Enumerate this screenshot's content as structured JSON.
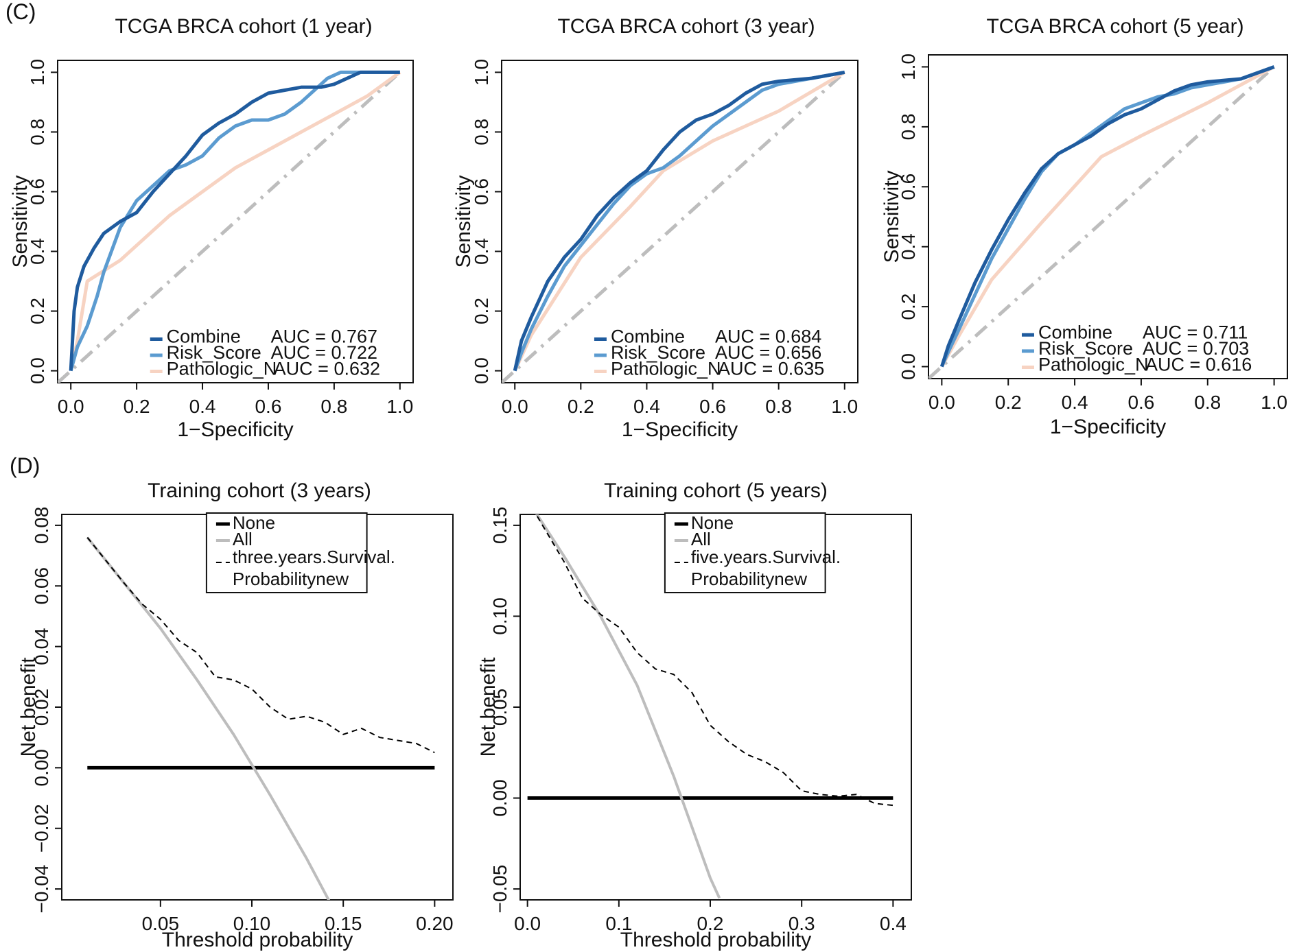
{
  "panel_labels": {
    "c": "(C)",
    "d": "(D)"
  },
  "colors": {
    "combine": "#1f5b9e",
    "risk": "#5b9bd0",
    "patho": "#f7d3c2",
    "diag": "#bdbdbd",
    "none": "#000000",
    "all": "#bdbdbd",
    "model": "#000000"
  },
  "chart_data": [
    {
      "id": "roc1",
      "type": "line",
      "title": "TCGA BRCA cohort (1 year)",
      "xlabel": "1−Specificity",
      "ylabel": "Sensitivity",
      "xlim": [
        0,
        1
      ],
      "ylim": [
        0,
        1
      ],
      "xticks": [
        "0.0",
        "0.2",
        "0.4",
        "0.6",
        "0.8",
        "1.0"
      ],
      "yticks": [
        "0.0",
        "0.2",
        "0.4",
        "0.6",
        "0.8",
        "1.0"
      ],
      "series": [
        {
          "name": "Combine",
          "auc": "AUC = 0.767",
          "color": "combine",
          "x": [
            0,
            0.01,
            0.02,
            0.04,
            0.07,
            0.1,
            0.15,
            0.2,
            0.25,
            0.3,
            0.35,
            0.4,
            0.45,
            0.5,
            0.55,
            0.6,
            0.65,
            0.7,
            0.76,
            0.8,
            0.88,
            1.0
          ],
          "y": [
            0,
            0.2,
            0.28,
            0.35,
            0.41,
            0.46,
            0.5,
            0.53,
            0.6,
            0.66,
            0.72,
            0.79,
            0.83,
            0.86,
            0.9,
            0.93,
            0.94,
            0.95,
            0.95,
            0.96,
            1.0,
            1.0
          ]
        },
        {
          "name": "Risk_Score",
          "auc": "AUC = 0.722",
          "color": "risk",
          "x": [
            0,
            0.02,
            0.05,
            0.08,
            0.1,
            0.15,
            0.2,
            0.25,
            0.3,
            0.35,
            0.4,
            0.45,
            0.5,
            0.55,
            0.6,
            0.65,
            0.7,
            0.75,
            0.78,
            0.82,
            1.0
          ],
          "y": [
            0,
            0.08,
            0.15,
            0.25,
            0.33,
            0.48,
            0.57,
            0.62,
            0.67,
            0.69,
            0.72,
            0.78,
            0.82,
            0.84,
            0.84,
            0.86,
            0.9,
            0.95,
            0.98,
            1.0,
            1.0
          ]
        },
        {
          "name": "Pathologic_N",
          "auc": "AUC = 0.632",
          "color": "patho",
          "x": [
            0,
            0.02,
            0.05,
            0.15,
            0.3,
            0.5,
            0.7,
            0.9,
            1.0
          ],
          "y": [
            0,
            0.1,
            0.3,
            0.37,
            0.52,
            0.68,
            0.8,
            0.92,
            1.0
          ]
        }
      ]
    },
    {
      "id": "roc3",
      "type": "line",
      "title": "TCGA BRCA cohort (3 year)",
      "xlabel": "1−Specificity",
      "ylabel": "Sensitivity",
      "xlim": [
        0,
        1
      ],
      "ylim": [
        0,
        1
      ],
      "xticks": [
        "0.0",
        "0.2",
        "0.4",
        "0.6",
        "0.8",
        "1.0"
      ],
      "yticks": [
        "0.0",
        "0.2",
        "0.4",
        "0.6",
        "0.8",
        "1.0"
      ],
      "series": [
        {
          "name": "Combine",
          "auc": "AUC = 0.684",
          "color": "combine",
          "x": [
            0,
            0.02,
            0.05,
            0.1,
            0.15,
            0.2,
            0.25,
            0.3,
            0.35,
            0.4,
            0.45,
            0.5,
            0.55,
            0.6,
            0.65,
            0.7,
            0.75,
            0.8,
            0.9,
            1.0
          ],
          "y": [
            0,
            0.1,
            0.18,
            0.3,
            0.38,
            0.44,
            0.52,
            0.58,
            0.63,
            0.67,
            0.74,
            0.8,
            0.84,
            0.86,
            0.89,
            0.93,
            0.96,
            0.97,
            0.98,
            1.0
          ]
        },
        {
          "name": "Risk_Score",
          "auc": "AUC = 0.656",
          "color": "risk",
          "x": [
            0,
            0.02,
            0.05,
            0.1,
            0.15,
            0.2,
            0.25,
            0.3,
            0.35,
            0.4,
            0.45,
            0.5,
            0.55,
            0.6,
            0.65,
            0.7,
            0.75,
            0.8,
            0.9,
            1.0
          ],
          "y": [
            0,
            0.06,
            0.14,
            0.25,
            0.35,
            0.42,
            0.49,
            0.56,
            0.62,
            0.66,
            0.68,
            0.72,
            0.77,
            0.82,
            0.86,
            0.9,
            0.94,
            0.96,
            0.98,
            1.0
          ]
        },
        {
          "name": "Pathologic_N",
          "auc": "AUC = 0.635",
          "color": "patho",
          "x": [
            0,
            0.05,
            0.2,
            0.35,
            0.45,
            0.6,
            0.8,
            1.0
          ],
          "y": [
            0,
            0.12,
            0.38,
            0.55,
            0.67,
            0.77,
            0.87,
            1.0
          ]
        }
      ]
    },
    {
      "id": "roc5",
      "type": "line",
      "title": "TCGA BRCA cohort (5 year)",
      "xlabel": "1−Specificity",
      "ylabel": "Sensitivity",
      "xlim": [
        0,
        1
      ],
      "ylim": [
        0,
        1
      ],
      "xticks": [
        "0.0",
        "0.2",
        "0.4",
        "0.6",
        "0.8",
        "1.0"
      ],
      "yticks": [
        "0.0",
        "0.2",
        "0.4",
        "0.6",
        "0.8",
        "1.0"
      ],
      "series": [
        {
          "name": "Combine",
          "auc": "AUC = 0.711",
          "color": "combine",
          "x": [
            0,
            0.02,
            0.05,
            0.1,
            0.15,
            0.2,
            0.25,
            0.3,
            0.35,
            0.4,
            0.45,
            0.5,
            0.55,
            0.6,
            0.65,
            0.7,
            0.75,
            0.8,
            0.9,
            1.0
          ],
          "y": [
            0,
            0.07,
            0.15,
            0.28,
            0.39,
            0.49,
            0.58,
            0.66,
            0.71,
            0.74,
            0.77,
            0.81,
            0.84,
            0.86,
            0.89,
            0.92,
            0.94,
            0.95,
            0.96,
            1.0
          ]
        },
        {
          "name": "Risk_Score",
          "auc": "AUC = 0.703",
          "color": "risk",
          "x": [
            0,
            0.02,
            0.05,
            0.1,
            0.15,
            0.2,
            0.25,
            0.3,
            0.35,
            0.4,
            0.45,
            0.5,
            0.55,
            0.6,
            0.65,
            0.7,
            0.75,
            0.8,
            0.9,
            1.0
          ],
          "y": [
            0,
            0.05,
            0.12,
            0.24,
            0.36,
            0.46,
            0.56,
            0.65,
            0.71,
            0.74,
            0.78,
            0.82,
            0.86,
            0.88,
            0.9,
            0.91,
            0.93,
            0.94,
            0.96,
            1.0
          ]
        },
        {
          "name": "Pathologic_N",
          "auc": "AUC = 0.616",
          "color": "patho",
          "x": [
            0,
            0.05,
            0.15,
            0.3,
            0.48,
            0.6,
            0.8,
            1.0
          ],
          "y": [
            0,
            0.1,
            0.29,
            0.48,
            0.7,
            0.77,
            0.88,
            1.0
          ]
        }
      ]
    },
    {
      "id": "dca3",
      "type": "line",
      "title": "Training cohort (3 years)",
      "xlabel": "Threshold probability",
      "ylabel": "Net benefit",
      "xlim": [
        0,
        0.2
      ],
      "ylim": [
        -0.04,
        0.08
      ],
      "xticks": [
        "0.05",
        "0.10",
        "0.15",
        "0.20"
      ],
      "yticks": [
        "−0.04",
        "−0.02",
        "0.00",
        "0.02",
        "0.04",
        "0.06",
        "0.08"
      ],
      "legend": [
        "None",
        "All",
        "three.years.Survival.",
        "Probabilitynew"
      ],
      "series": [
        {
          "name": "None",
          "color": "none",
          "x": [
            0.01,
            0.2
          ],
          "y": [
            0,
            0
          ]
        },
        {
          "name": "All",
          "color": "all",
          "x": [
            0.01,
            0.03,
            0.05,
            0.07,
            0.09,
            0.11,
            0.13,
            0.145
          ],
          "y": [
            0.076,
            0.061,
            0.046,
            0.029,
            0.011,
            -0.009,
            -0.03,
            -0.047
          ]
        },
        {
          "name": "three.years.Survival.Probabilitynew",
          "color": "model",
          "x": [
            0.01,
            0.03,
            0.04,
            0.05,
            0.06,
            0.07,
            0.08,
            0.09,
            0.1,
            0.11,
            0.12,
            0.13,
            0.14,
            0.15,
            0.16,
            0.17,
            0.18,
            0.19,
            0.2
          ],
          "y": [
            0.076,
            0.061,
            0.054,
            0.049,
            0.042,
            0.038,
            0.03,
            0.029,
            0.026,
            0.02,
            0.016,
            0.017,
            0.015,
            0.011,
            0.013,
            0.01,
            0.009,
            0.008,
            0.005
          ]
        }
      ]
    },
    {
      "id": "dca5",
      "type": "line",
      "title": "Training cohort (5 years)",
      "xlabel": "Threshold probability",
      "ylabel": "Net benefit",
      "xlim": [
        0,
        0.4
      ],
      "ylim": [
        -0.05,
        0.15
      ],
      "xticks": [
        "0.0",
        "0.1",
        "0.2",
        "0.3",
        "0.4"
      ],
      "yticks": [
        "−0.05",
        "0.00",
        "0.05",
        "0.10",
        "0.15"
      ],
      "legend": [
        "None",
        "All",
        "five.years.Survival.",
        "Probabilitynew"
      ],
      "series": [
        {
          "name": "None",
          "color": "none",
          "x": [
            0,
            0.4
          ],
          "y": [
            0,
            0
          ]
        },
        {
          "name": "All",
          "color": "all",
          "x": [
            0,
            0.04,
            0.08,
            0.12,
            0.16,
            0.2,
            0.21
          ],
          "y": [
            0.164,
            0.133,
            0.1,
            0.062,
            0.012,
            -0.044,
            -0.055
          ]
        },
        {
          "name": "five.years.Survival.Probabilitynew",
          "color": "model",
          "x": [
            0,
            0.04,
            0.06,
            0.08,
            0.1,
            0.12,
            0.14,
            0.16,
            0.18,
            0.2,
            0.22,
            0.24,
            0.26,
            0.28,
            0.3,
            0.32,
            0.34,
            0.36,
            0.38,
            0.4
          ],
          "y": [
            0.164,
            0.13,
            0.11,
            0.101,
            0.094,
            0.08,
            0.071,
            0.068,
            0.058,
            0.04,
            0.031,
            0.024,
            0.02,
            0.014,
            0.004,
            0.002,
            0.001,
            0.002,
            -0.003,
            -0.004
          ]
        }
      ]
    }
  ]
}
